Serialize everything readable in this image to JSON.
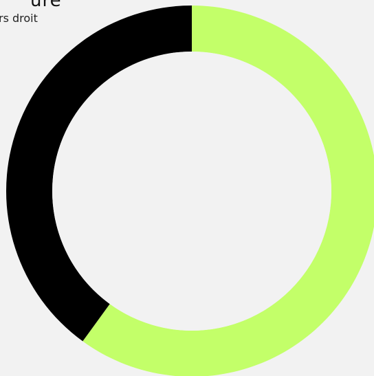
{
  "page": {
    "title_fragment": "ure",
    "subtitle_fragment": "rs droit"
  },
  "colors": {
    "background": "#f2f2f2",
    "inner": "#f2f2f2"
  },
  "chart_data": {
    "type": "pie",
    "variant": "donut",
    "title": "",
    "slices": [
      {
        "label": "",
        "value": 60,
        "color": "#c3ff69"
      },
      {
        "label": "",
        "value": 40,
        "color": "#000000"
      }
    ],
    "start_angle_deg": 0,
    "direction": "clockwise",
    "legend": "none"
  }
}
